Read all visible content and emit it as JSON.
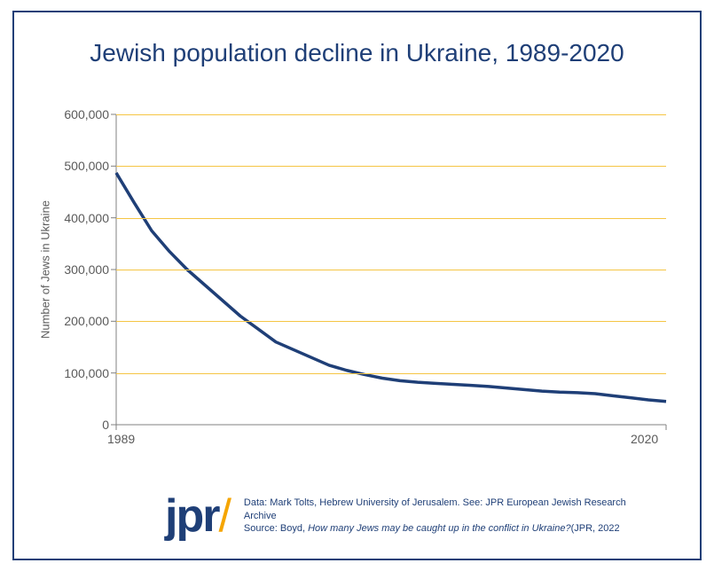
{
  "title": "Jewish population decline in Ukraine, 1989-2020",
  "title_fontsize": 28,
  "title_color": "#1f3f77",
  "frame_border_color": "#1f3f77",
  "background_color": "#ffffff",
  "chart": {
    "type": "line",
    "x_start": 1989,
    "x_end": 2020,
    "values": [
      {
        "year": 1989,
        "value": 487000
      },
      {
        "year": 1990,
        "value": 430000
      },
      {
        "year": 1991,
        "value": 375000
      },
      {
        "year": 1992,
        "value": 335000
      },
      {
        "year": 1993,
        "value": 300000
      },
      {
        "year": 1994,
        "value": 270000
      },
      {
        "year": 1995,
        "value": 240000
      },
      {
        "year": 1996,
        "value": 210000
      },
      {
        "year": 1997,
        "value": 185000
      },
      {
        "year": 1998,
        "value": 160000
      },
      {
        "year": 1999,
        "value": 145000
      },
      {
        "year": 2000,
        "value": 130000
      },
      {
        "year": 2001,
        "value": 115000
      },
      {
        "year": 2002,
        "value": 105000
      },
      {
        "year": 2003,
        "value": 97000
      },
      {
        "year": 2004,
        "value": 90000
      },
      {
        "year": 2005,
        "value": 85000
      },
      {
        "year": 2006,
        "value": 82000
      },
      {
        "year": 2007,
        "value": 80000
      },
      {
        "year": 2008,
        "value": 78000
      },
      {
        "year": 2009,
        "value": 76000
      },
      {
        "year": 2010,
        "value": 74000
      },
      {
        "year": 2011,
        "value": 71000
      },
      {
        "year": 2012,
        "value": 68000
      },
      {
        "year": 2013,
        "value": 65000
      },
      {
        "year": 2014,
        "value": 63000
      },
      {
        "year": 2015,
        "value": 62000
      },
      {
        "year": 2016,
        "value": 60000
      },
      {
        "year": 2017,
        "value": 56000
      },
      {
        "year": 2018,
        "value": 52000
      },
      {
        "year": 2019,
        "value": 48000
      },
      {
        "year": 2020,
        "value": 45000
      }
    ],
    "line_color": "#1f3f77",
    "line_width": 3.5,
    "grid_color": "#f5c544",
    "axis_color": "#808080",
    "ylim": [
      0,
      600000
    ],
    "yticks": [
      0,
      100000,
      200000,
      300000,
      400000,
      500000,
      600000
    ],
    "ytick_labels": [
      "0",
      "100,000",
      "200,000",
      "300,000",
      "400,000",
      "500,000",
      "600,000"
    ],
    "xticks": [
      1989,
      2020
    ],
    "xtick_labels": [
      "1989",
      "2020"
    ],
    "yaxis_title": "Number of Jews in Ukraine",
    "tick_fontsize": 14,
    "axis_title_fontsize": 13,
    "tick_color": "#5a5a5a"
  },
  "logo": {
    "text": "jpr",
    "slash": "/",
    "text_color": "#1f3f77",
    "slash_color": "#f5a500",
    "fontsize": 52
  },
  "source": {
    "line1": "Data: Mark Tolts, Hebrew University of Jerusalem. See: JPR European Jewish Research Archive",
    "line2_prefix": "Source: Boyd, ",
    "line2_italic": "How many Jews may be caught up in the conflict in Ukraine?",
    "line2_suffix": "(JPR, 2022",
    "fontsize": 11,
    "color": "#1f3f77"
  }
}
